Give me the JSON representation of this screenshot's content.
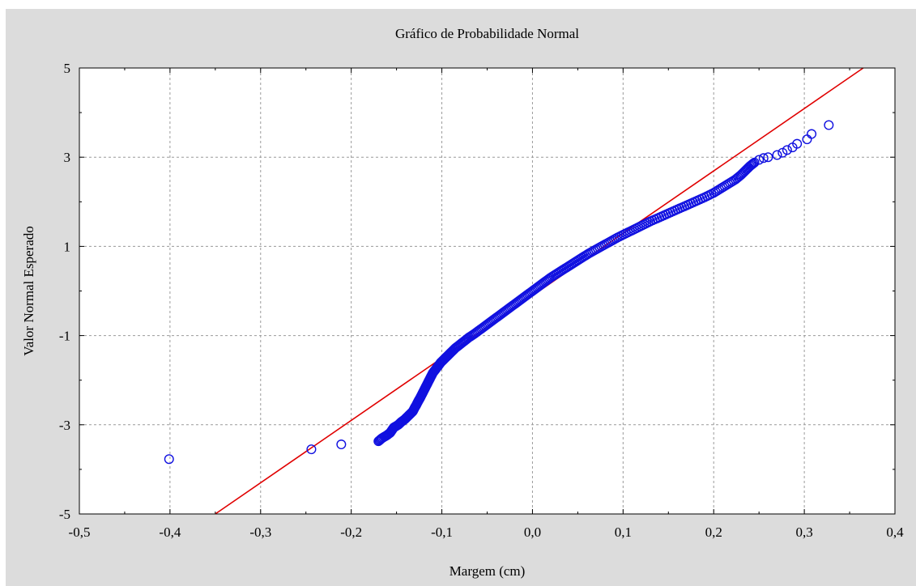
{
  "chart_data": {
    "type": "scatter",
    "title": "Gráfico de Probabilidade Normal",
    "xlabel": "Margem (cm)",
    "ylabel": "Valor Normal Esperado",
    "xlim": [
      -0.5,
      0.4
    ],
    "ylim": [
      -5,
      5
    ],
    "x_ticks": [
      -0.5,
      -0.4,
      -0.3,
      -0.2,
      -0.1,
      0.0,
      0.1,
      0.2,
      0.3,
      0.4
    ],
    "x_tick_labels": [
      "-0,5",
      "-0,4",
      "-0,3",
      "-0,2",
      "-0,1",
      "0,0",
      "0,1",
      "0,2",
      "0,3",
      "0,4"
    ],
    "y_ticks": [
      -5,
      -3,
      -1,
      1,
      3,
      5
    ],
    "y_tick_labels": [
      "-5",
      "-3",
      "-1",
      "1",
      "3",
      "5"
    ],
    "grid": true,
    "reference_line": {
      "x": [
        -0.35,
        0.365
      ],
      "y": [
        -5,
        5.0
      ],
      "color": "#e00000"
    },
    "marker_color": "#1010e0",
    "points": [
      {
        "x": -0.401,
        "y": -3.77
      },
      {
        "x": -0.244,
        "y": -3.55
      },
      {
        "x": -0.211,
        "y": -3.44
      },
      {
        "x": -0.17,
        "y": -3.37
      },
      {
        "x": -0.166,
        "y": -3.3
      },
      {
        "x": -0.161,
        "y": -3.24
      },
      {
        "x": -0.157,
        "y": -3.18
      },
      {
        "x": -0.155,
        "y": -3.12
      },
      {
        "x": -0.153,
        "y": -3.06
      },
      {
        "x": -0.148,
        "y": -3.0
      },
      {
        "x": -0.145,
        "y": -2.94
      },
      {
        "x": -0.141,
        "y": -2.88
      },
      {
        "x": -0.138,
        "y": -2.82
      },
      {
        "x": -0.135,
        "y": -2.76
      },
      {
        "x": -0.132,
        "y": -2.7
      },
      {
        "x": -0.13,
        "y": -2.62
      },
      {
        "x": -0.128,
        "y": -2.55
      },
      {
        "x": -0.126,
        "y": -2.47
      },
      {
        "x": -0.124,
        "y": -2.4
      },
      {
        "x": -0.122,
        "y": -2.32
      },
      {
        "x": -0.12,
        "y": -2.24
      },
      {
        "x": -0.118,
        "y": -2.16
      },
      {
        "x": -0.116,
        "y": -2.08
      },
      {
        "x": -0.114,
        "y": -2.0
      },
      {
        "x": -0.112,
        "y": -1.92
      },
      {
        "x": -0.11,
        "y": -1.84
      },
      {
        "x": -0.107,
        "y": -1.76
      },
      {
        "x": -0.104,
        "y": -1.68
      },
      {
        "x": -0.101,
        "y": -1.6
      },
      {
        "x": -0.097,
        "y": -1.52
      },
      {
        "x": -0.093,
        "y": -1.44
      },
      {
        "x": -0.089,
        "y": -1.36
      },
      {
        "x": -0.085,
        "y": -1.28
      },
      {
        "x": -0.08,
        "y": -1.2
      },
      {
        "x": -0.075,
        "y": -1.12
      },
      {
        "x": -0.07,
        "y": -1.04
      },
      {
        "x": -0.064,
        "y": -0.96
      },
      {
        "x": -0.058,
        "y": -0.87
      },
      {
        "x": -0.052,
        "y": -0.78
      },
      {
        "x": -0.046,
        "y": -0.69
      },
      {
        "x": -0.04,
        "y": -0.6
      },
      {
        "x": -0.034,
        "y": -0.51
      },
      {
        "x": -0.028,
        "y": -0.42
      },
      {
        "x": -0.022,
        "y": -0.33
      },
      {
        "x": -0.016,
        "y": -0.24
      },
      {
        "x": -0.01,
        "y": -0.15
      },
      {
        "x": -0.004,
        "y": -0.06
      },
      {
        "x": 0.002,
        "y": 0.03
      },
      {
        "x": 0.008,
        "y": 0.12
      },
      {
        "x": 0.014,
        "y": 0.21
      },
      {
        "x": 0.02,
        "y": 0.3
      },
      {
        "x": 0.027,
        "y": 0.39
      },
      {
        "x": 0.034,
        "y": 0.48
      },
      {
        "x": 0.041,
        "y": 0.57
      },
      {
        "x": 0.048,
        "y": 0.66
      },
      {
        "x": 0.055,
        "y": 0.75
      },
      {
        "x": 0.062,
        "y": 0.84
      },
      {
        "x": 0.07,
        "y": 0.93
      },
      {
        "x": 0.078,
        "y": 1.02
      },
      {
        "x": 0.086,
        "y": 1.11
      },
      {
        "x": 0.094,
        "y": 1.2
      },
      {
        "x": 0.103,
        "y": 1.29
      },
      {
        "x": 0.112,
        "y": 1.38
      },
      {
        "x": 0.121,
        "y": 1.47
      },
      {
        "x": 0.13,
        "y": 1.56
      },
      {
        "x": 0.14,
        "y": 1.65
      },
      {
        "x": 0.15,
        "y": 1.74
      },
      {
        "x": 0.16,
        "y": 1.83
      },
      {
        "x": 0.17,
        "y": 1.92
      },
      {
        "x": 0.18,
        "y": 2.01
      },
      {
        "x": 0.19,
        "y": 2.1
      },
      {
        "x": 0.2,
        "y": 2.2
      },
      {
        "x": 0.208,
        "y": 2.3
      },
      {
        "x": 0.216,
        "y": 2.4
      },
      {
        "x": 0.224,
        "y": 2.5
      },
      {
        "x": 0.23,
        "y": 2.6
      },
      {
        "x": 0.235,
        "y": 2.7
      },
      {
        "x": 0.24,
        "y": 2.8
      },
      {
        "x": 0.245,
        "y": 2.88
      },
      {
        "x": 0.25,
        "y": 2.94
      },
      {
        "x": 0.255,
        "y": 2.98
      },
      {
        "x": 0.26,
        "y": 3.0
      },
      {
        "x": 0.27,
        "y": 3.05
      },
      {
        "x": 0.276,
        "y": 3.1
      },
      {
        "x": 0.281,
        "y": 3.16
      },
      {
        "x": 0.287,
        "y": 3.22
      },
      {
        "x": 0.292,
        "y": 3.3
      },
      {
        "x": 0.303,
        "y": 3.4
      },
      {
        "x": 0.308,
        "y": 3.52
      },
      {
        "x": 0.327,
        "y": 3.72
      }
    ]
  }
}
